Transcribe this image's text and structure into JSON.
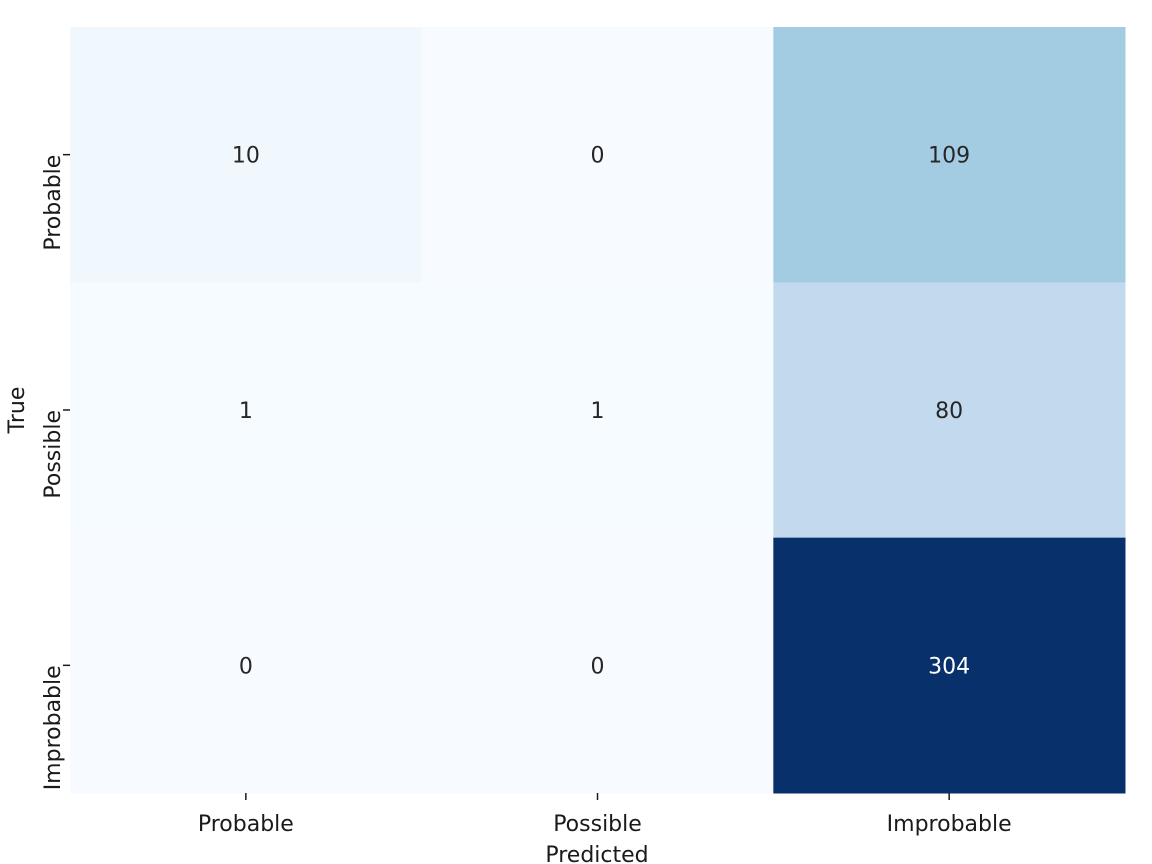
{
  "chart_data": {
    "type": "heatmap",
    "title": "",
    "xlabel": "Predicted",
    "ylabel": "True",
    "x_categories": [
      "Probable",
      "Possible",
      "Improbable"
    ],
    "y_categories": [
      "Probable",
      "Possible",
      "Improbable"
    ],
    "values": [
      [
        10,
        0,
        109
      ],
      [
        1,
        1,
        80
      ],
      [
        0,
        0,
        304
      ]
    ],
    "colormap": "Blues",
    "colorbar": false,
    "grid": false
  }
}
